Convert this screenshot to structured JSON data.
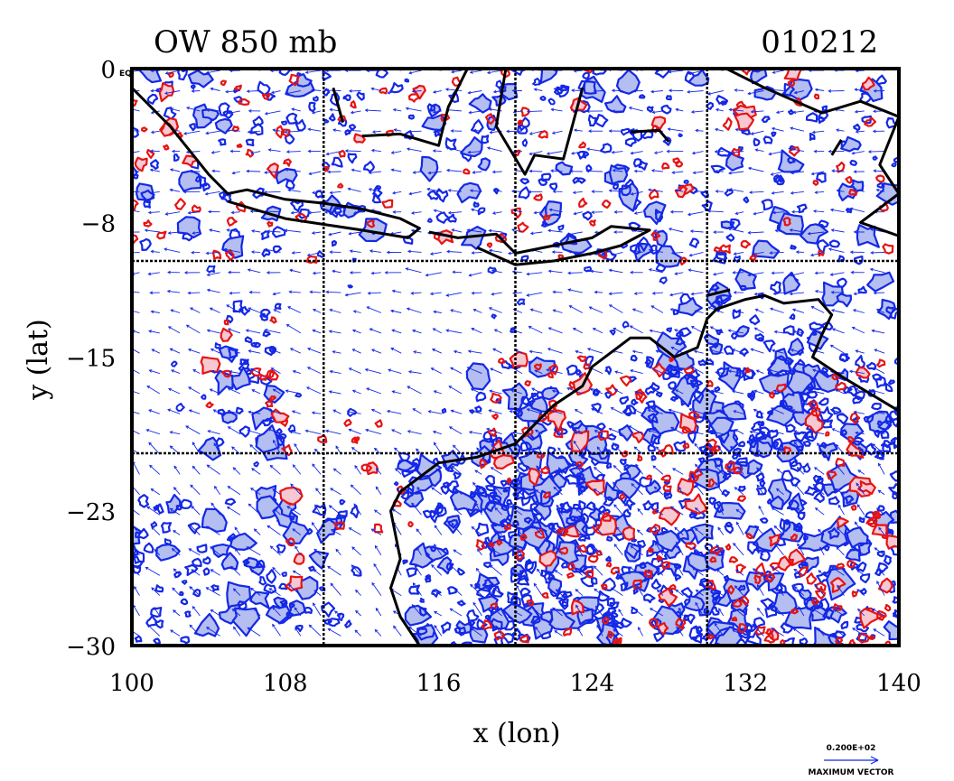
{
  "chart_data": {
    "type": "contour",
    "title_left": "OW 850 mb",
    "title_right": "010212",
    "xlabel": "x (lon)",
    "ylabel": "y (lat)",
    "x_ticks": [
      "100",
      "108",
      "116",
      "124",
      "132",
      "140"
    ],
    "y_ticks": [
      "0 EQ",
      "−8",
      "−15",
      "−23",
      "−30"
    ],
    "xlim": [
      100,
      140
    ],
    "ylim": [
      -30,
      0
    ],
    "x_tick_values": [
      100,
      108,
      116,
      124,
      132,
      140
    ],
    "y_tick_values": [
      0,
      -8,
      -15,
      -23,
      -30
    ],
    "grid": true,
    "grid_lons": [
      110,
      120,
      130
    ],
    "grid_lats": [
      -10,
      -20
    ],
    "vector_key": {
      "value": "0.200E+02",
      "label": "MAXIMUM VECTOR"
    },
    "fields": {
      "negative_contours_color": "#1428e6",
      "negative_fill_color": "#b4bef0",
      "positive_contours_color": "#e61414",
      "positive_fill_color": "#f5c8d2",
      "coastline_color": "#000000",
      "vector_color": "#1428e6"
    }
  }
}
